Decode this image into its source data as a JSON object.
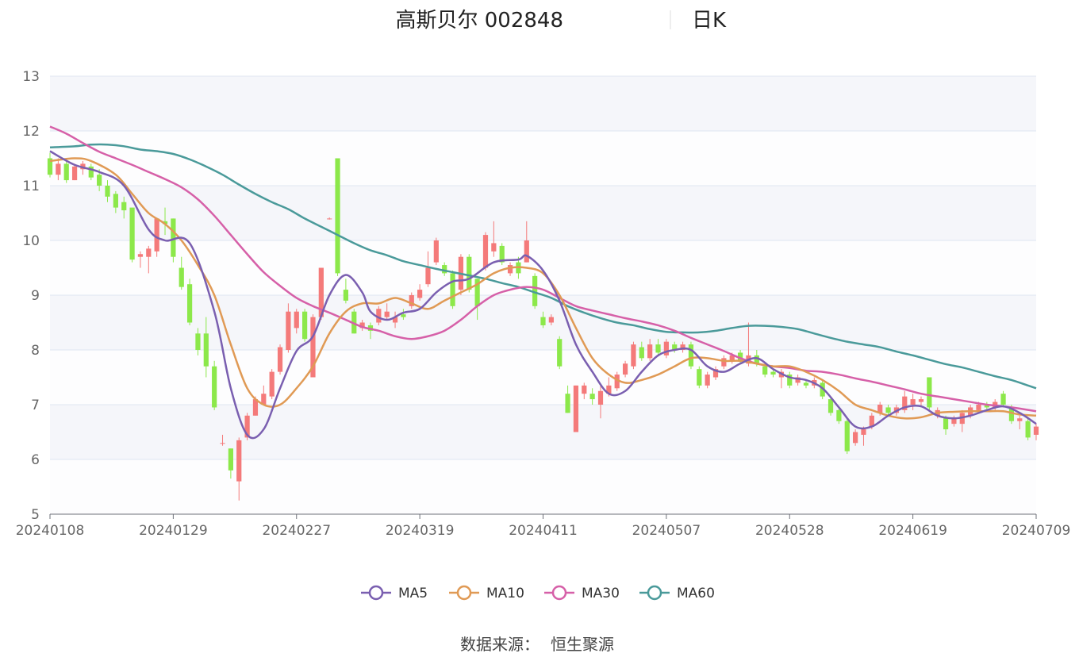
{
  "header": {
    "title": "高斯贝尔 002848",
    "subtitle": "日K"
  },
  "footer": {
    "source_label": "数据来源：",
    "source_name": "恒生聚源"
  },
  "colors": {
    "up": "#f47a7a",
    "down": "#8ce84a",
    "ma5": "#7a5fb0",
    "ma10": "#e09a55",
    "ma30": "#d660a8",
    "ma60": "#4a9a9a",
    "grid": "#e0e6f1",
    "band": "#f5f6fa"
  },
  "chart_data": {
    "type": "candlestick",
    "ylim": [
      5,
      13
    ],
    "yticks": [
      5,
      6,
      7,
      8,
      9,
      10,
      11,
      12,
      13
    ],
    "xticks": [
      "20240108",
      "20240129",
      "20240227",
      "20240319",
      "20240411",
      "20240507",
      "20240528",
      "20240619",
      "20240709"
    ],
    "xtick_index": [
      0,
      15,
      30,
      45,
      60,
      75,
      90,
      105,
      120
    ],
    "legend": [
      {
        "name": "MA5",
        "color": "#7a5fb0"
      },
      {
        "name": "MA10",
        "color": "#e09a55"
      },
      {
        "name": "MA30",
        "color": "#d660a8"
      },
      {
        "name": "MA60",
        "color": "#4a9a9a"
      }
    ],
    "candles": [
      [
        11.5,
        11.2,
        11.6,
        11.15
      ],
      [
        11.2,
        11.4,
        11.5,
        11.1
      ],
      [
        11.4,
        11.1,
        11.5,
        11.05
      ],
      [
        11.1,
        11.35,
        11.4,
        11.1
      ],
      [
        11.3,
        11.4,
        11.45,
        11.2
      ],
      [
        11.35,
        11.15,
        11.4,
        11.1
      ],
      [
        11.2,
        11.0,
        11.3,
        10.9
      ],
      [
        11.0,
        10.8,
        11.1,
        10.7
      ],
      [
        10.85,
        10.6,
        10.9,
        10.5
      ],
      [
        10.7,
        10.55,
        10.8,
        10.4
      ],
      [
        10.6,
        9.65,
        10.6,
        9.6
      ],
      [
        9.7,
        9.75,
        9.8,
        9.5
      ],
      [
        9.7,
        9.85,
        9.9,
        9.4
      ],
      [
        9.8,
        10.4,
        10.4,
        9.7
      ],
      [
        10.35,
        10.3,
        10.6,
        10.1
      ],
      [
        10.4,
        9.7,
        10.4,
        9.6
      ],
      [
        9.5,
        9.15,
        9.7,
        9.1
      ],
      [
        9.2,
        8.5,
        9.3,
        8.45
      ],
      [
        8.3,
        8.0,
        8.4,
        7.9
      ],
      [
        8.3,
        7.7,
        8.6,
        7.5
      ],
      [
        7.7,
        6.95,
        7.8,
        6.9
      ],
      [
        6.3,
        6.3,
        6.45,
        6.25
      ],
      [
        6.2,
        5.8,
        6.2,
        5.65
      ],
      [
        5.6,
        6.35,
        6.4,
        5.25
      ],
      [
        6.4,
        6.8,
        6.85,
        6.35
      ],
      [
        6.8,
        7.1,
        7.15,
        6.8
      ],
      [
        7.0,
        7.2,
        7.35,
        7.0
      ],
      [
        7.15,
        7.6,
        7.65,
        7.1
      ],
      [
        7.6,
        8.05,
        8.1,
        7.55
      ],
      [
        8.0,
        8.7,
        8.85,
        7.95
      ],
      [
        8.4,
        8.7,
        8.75,
        8.3
      ],
      [
        8.7,
        8.2,
        8.75,
        8.15
      ],
      [
        7.5,
        8.6,
        8.65,
        7.5
      ],
      [
        8.6,
        9.5,
        9.5,
        8.55
      ],
      [
        10.4,
        10.4,
        10.42,
        10.38
      ],
      [
        11.5,
        9.4,
        11.5,
        9.35
      ],
      [
        9.1,
        8.9,
        9.3,
        8.85
      ],
      [
        8.7,
        8.3,
        8.75,
        8.3
      ],
      [
        8.4,
        8.5,
        8.55,
        8.35
      ],
      [
        8.45,
        8.35,
        8.5,
        8.2
      ],
      [
        8.5,
        8.75,
        8.8,
        8.45
      ],
      [
        8.6,
        8.7,
        8.85,
        8.55
      ],
      [
        8.5,
        8.6,
        8.7,
        8.4
      ],
      [
        8.65,
        8.6,
        8.75,
        8.55
      ],
      [
        8.8,
        9.0,
        9.05,
        8.75
      ],
      [
        8.95,
        9.1,
        9.2,
        8.9
      ],
      [
        9.2,
        9.5,
        9.8,
        9.15
      ],
      [
        9.6,
        10.0,
        10.05,
        9.55
      ],
      [
        9.55,
        9.4,
        9.6,
        9.35
      ],
      [
        9.4,
        8.8,
        9.45,
        8.75
      ],
      [
        9.1,
        9.7,
        9.75,
        9.0
      ],
      [
        9.7,
        9.1,
        9.75,
        9.05
      ],
      [
        9.3,
        8.8,
        9.3,
        8.55
      ],
      [
        9.5,
        10.1,
        10.15,
        9.45
      ],
      [
        9.8,
        9.95,
        10.35,
        9.7
      ],
      [
        9.9,
        9.6,
        9.95,
        9.55
      ],
      [
        9.4,
        9.55,
        9.6,
        9.35
      ],
      [
        9.6,
        9.4,
        9.7,
        9.3
      ],
      [
        9.6,
        10.0,
        10.35,
        9.6
      ],
      [
        9.35,
        8.8,
        9.4,
        8.75
      ],
      [
        8.6,
        8.45,
        8.7,
        8.4
      ],
      [
        8.5,
        8.6,
        8.65,
        8.45
      ],
      [
        8.2,
        7.7,
        8.25,
        7.65
      ],
      [
        7.2,
        6.85,
        7.35,
        6.85
      ],
      [
        6.5,
        7.35,
        7.35,
        6.5
      ],
      [
        7.2,
        7.35,
        7.4,
        7.1
      ],
      [
        7.2,
        7.1,
        7.3,
        7.0
      ],
      [
        7.0,
        7.25,
        7.35,
        6.75
      ],
      [
        7.2,
        7.35,
        7.5,
        7.15
      ],
      [
        7.3,
        7.55,
        7.6,
        7.25
      ],
      [
        7.55,
        7.75,
        7.8,
        7.5
      ],
      [
        7.7,
        8.1,
        8.15,
        7.65
      ],
      [
        8.05,
        7.85,
        8.15,
        7.8
      ],
      [
        7.85,
        8.1,
        8.2,
        7.8
      ],
      [
        8.1,
        7.95,
        8.2,
        7.9
      ],
      [
        7.9,
        8.15,
        8.2,
        7.85
      ],
      [
        8.1,
        8.0,
        8.15,
        7.95
      ],
      [
        8.0,
        8.1,
        8.15,
        7.95
      ],
      [
        8.1,
        7.7,
        8.15,
        7.65
      ],
      [
        7.65,
        7.35,
        7.7,
        7.3
      ],
      [
        7.35,
        7.55,
        7.6,
        7.3
      ],
      [
        7.5,
        7.65,
        7.7,
        7.45
      ],
      [
        7.7,
        7.85,
        7.9,
        7.65
      ],
      [
        7.8,
        7.9,
        7.95,
        7.75
      ],
      [
        7.95,
        7.8,
        8.0,
        7.75
      ],
      [
        7.75,
        7.9,
        8.5,
        7.7
      ],
      [
        7.9,
        7.75,
        8.0,
        7.7
      ],
      [
        7.7,
        7.55,
        7.75,
        7.5
      ],
      [
        7.6,
        7.55,
        7.65,
        7.5
      ],
      [
        7.5,
        7.6,
        7.65,
        7.3
      ],
      [
        7.55,
        7.35,
        7.6,
        7.3
      ],
      [
        7.4,
        7.5,
        7.55,
        7.35
      ],
      [
        7.4,
        7.35,
        7.45,
        7.3
      ],
      [
        7.35,
        7.45,
        7.5,
        7.3
      ],
      [
        7.4,
        7.15,
        7.45,
        7.1
      ],
      [
        7.1,
        6.85,
        7.15,
        6.8
      ],
      [
        6.9,
        6.7,
        6.95,
        6.65
      ],
      [
        6.7,
        6.15,
        6.75,
        6.1
      ],
      [
        6.3,
        6.5,
        6.55,
        6.25
      ],
      [
        6.45,
        6.55,
        6.6,
        6.25
      ],
      [
        6.6,
        6.8,
        6.85,
        6.55
      ],
      [
        6.85,
        7.0,
        7.05,
        6.8
      ],
      [
        6.95,
        6.85,
        7.0,
        6.8
      ],
      [
        6.85,
        6.95,
        7.0,
        6.8
      ],
      [
        6.9,
        7.15,
        7.25,
        6.85
      ],
      [
        7.0,
        7.1,
        7.2,
        6.9
      ],
      [
        7.05,
        7.1,
        7.15,
        6.95
      ],
      [
        7.5,
        6.95,
        7.5,
        6.9
      ],
      [
        6.8,
        6.9,
        6.95,
        6.75
      ],
      [
        6.75,
        6.55,
        6.8,
        6.45
      ],
      [
        6.65,
        6.75,
        6.8,
        6.6
      ],
      [
        6.65,
        6.85,
        6.9,
        6.5
      ],
      [
        6.8,
        6.95,
        7.0,
        6.75
      ],
      [
        6.9,
        7.0,
        7.05,
        6.85
      ],
      [
        7.0,
        6.95,
        7.05,
        6.9
      ],
      [
        6.95,
        7.05,
        7.1,
        6.9
      ],
      [
        7.2,
        7.0,
        7.25,
        6.95
      ],
      [
        6.95,
        6.7,
        7.0,
        6.65
      ],
      [
        6.7,
        6.75,
        6.8,
        6.55
      ],
      [
        6.7,
        6.4,
        6.75,
        6.35
      ],
      [
        6.45,
        6.6,
        6.65,
        6.35
      ]
    ],
    "ma5": [
      [
        0,
        11.63
      ],
      [
        3,
        11.38
      ],
      [
        6,
        11.25
      ],
      [
        9,
        11.0
      ],
      [
        12,
        10.2
      ],
      [
        14,
        10.0
      ],
      [
        17,
        9.95
      ],
      [
        20,
        8.7
      ],
      [
        22,
        7.3
      ],
      [
        24,
        6.45
      ],
      [
        26,
        6.55
      ],
      [
        28,
        7.3
      ],
      [
        30,
        7.98
      ],
      [
        32,
        8.25
      ],
      [
        34,
        9.0
      ],
      [
        36,
        9.37
      ],
      [
        38,
        9.05
      ],
      [
        39,
        8.7
      ],
      [
        41,
        8.55
      ],
      [
        43,
        8.68
      ],
      [
        45,
        8.75
      ],
      [
        47,
        9.05
      ],
      [
        49,
        9.25
      ],
      [
        51,
        9.3
      ],
      [
        54,
        9.6
      ],
      [
        57,
        9.65
      ],
      [
        58,
        9.72
      ],
      [
        60,
        9.45
      ],
      [
        62,
        8.9
      ],
      [
        64,
        8.1
      ],
      [
        66,
        7.6
      ],
      [
        68,
        7.2
      ],
      [
        70,
        7.25
      ],
      [
        72,
        7.6
      ],
      [
        74,
        7.9
      ],
      [
        76,
        8.0
      ],
      [
        78,
        8.0
      ],
      [
        80,
        7.7
      ],
      [
        82,
        7.6
      ],
      [
        84,
        7.75
      ],
      [
        86,
        7.85
      ],
      [
        88,
        7.65
      ],
      [
        90,
        7.5
      ],
      [
        92,
        7.45
      ],
      [
        94,
        7.3
      ],
      [
        96,
        6.95
      ],
      [
        98,
        6.6
      ],
      [
        100,
        6.6
      ],
      [
        102,
        6.8
      ],
      [
        104,
        6.95
      ],
      [
        106,
        6.97
      ],
      [
        108,
        6.8
      ],
      [
        110,
        6.75
      ],
      [
        112,
        6.8
      ],
      [
        114,
        6.9
      ],
      [
        116,
        6.97
      ],
      [
        118,
        6.85
      ],
      [
        120,
        6.65
      ]
    ],
    "ma10": [
      [
        0,
        11.45
      ],
      [
        3,
        11.5
      ],
      [
        5,
        11.45
      ],
      [
        8,
        11.2
      ],
      [
        10,
        10.85
      ],
      [
        12,
        10.5
      ],
      [
        14,
        10.3
      ],
      [
        16,
        10.0
      ],
      [
        18,
        9.55
      ],
      [
        20,
        9.0
      ],
      [
        22,
        8.1
      ],
      [
        24,
        7.3
      ],
      [
        26,
        7.0
      ],
      [
        28,
        7.0
      ],
      [
        30,
        7.3
      ],
      [
        32,
        7.7
      ],
      [
        34,
        8.3
      ],
      [
        36,
        8.7
      ],
      [
        38,
        8.85
      ],
      [
        40,
        8.85
      ],
      [
        42,
        8.95
      ],
      [
        44,
        8.85
      ],
      [
        46,
        8.75
      ],
      [
        48,
        8.9
      ],
      [
        50,
        9.05
      ],
      [
        52,
        9.2
      ],
      [
        54,
        9.4
      ],
      [
        56,
        9.5
      ],
      [
        58,
        9.5
      ],
      [
        60,
        9.4
      ],
      [
        62,
        9.0
      ],
      [
        64,
        8.4
      ],
      [
        66,
        7.85
      ],
      [
        68,
        7.55
      ],
      [
        70,
        7.4
      ],
      [
        72,
        7.45
      ],
      [
        74,
        7.55
      ],
      [
        76,
        7.7
      ],
      [
        78,
        7.85
      ],
      [
        80,
        7.85
      ],
      [
        82,
        7.8
      ],
      [
        84,
        7.8
      ],
      [
        86,
        7.75
      ],
      [
        88,
        7.7
      ],
      [
        90,
        7.7
      ],
      [
        92,
        7.6
      ],
      [
        94,
        7.45
      ],
      [
        96,
        7.25
      ],
      [
        98,
        7.0
      ],
      [
        100,
        6.9
      ],
      [
        102,
        6.8
      ],
      [
        104,
        6.75
      ],
      [
        106,
        6.77
      ],
      [
        108,
        6.85
      ],
      [
        110,
        6.87
      ],
      [
        112,
        6.88
      ],
      [
        114,
        6.88
      ],
      [
        116,
        6.88
      ],
      [
        118,
        6.82
      ],
      [
        120,
        6.8
      ]
    ],
    "ma30": [
      [
        0,
        12.08
      ],
      [
        2,
        11.95
      ],
      [
        4,
        11.78
      ],
      [
        6,
        11.62
      ],
      [
        8,
        11.5
      ],
      [
        10,
        11.38
      ],
      [
        12,
        11.25
      ],
      [
        14,
        11.12
      ],
      [
        16,
        10.97
      ],
      [
        18,
        10.75
      ],
      [
        20,
        10.45
      ],
      [
        22,
        10.1
      ],
      [
        24,
        9.75
      ],
      [
        26,
        9.42
      ],
      [
        28,
        9.17
      ],
      [
        30,
        8.95
      ],
      [
        32,
        8.8
      ],
      [
        34,
        8.68
      ],
      [
        36,
        8.55
      ],
      [
        38,
        8.42
      ],
      [
        40,
        8.35
      ],
      [
        42,
        8.25
      ],
      [
        44,
        8.2
      ],
      [
        46,
        8.25
      ],
      [
        48,
        8.35
      ],
      [
        50,
        8.55
      ],
      [
        52,
        8.8
      ],
      [
        54,
        9.0
      ],
      [
        56,
        9.1
      ],
      [
        58,
        9.15
      ],
      [
        60,
        9.1
      ],
      [
        62,
        8.95
      ],
      [
        64,
        8.8
      ],
      [
        66,
        8.72
      ],
      [
        68,
        8.65
      ],
      [
        70,
        8.58
      ],
      [
        72,
        8.52
      ],
      [
        74,
        8.45
      ],
      [
        76,
        8.35
      ],
      [
        78,
        8.22
      ],
      [
        80,
        8.1
      ],
      [
        82,
        7.98
      ],
      [
        84,
        7.85
      ],
      [
        86,
        7.75
      ],
      [
        88,
        7.7
      ],
      [
        90,
        7.67
      ],
      [
        92,
        7.62
      ],
      [
        94,
        7.6
      ],
      [
        96,
        7.55
      ],
      [
        98,
        7.48
      ],
      [
        100,
        7.42
      ],
      [
        102,
        7.35
      ],
      [
        104,
        7.28
      ],
      [
        106,
        7.2
      ],
      [
        108,
        7.15
      ],
      [
        110,
        7.1
      ],
      [
        112,
        7.05
      ],
      [
        114,
        7.0
      ],
      [
        116,
        6.97
      ],
      [
        118,
        6.93
      ],
      [
        120,
        6.88
      ]
    ],
    "ma60": [
      [
        0,
        11.7
      ],
      [
        3,
        11.72
      ],
      [
        5,
        11.75
      ],
      [
        7,
        11.75
      ],
      [
        9,
        11.72
      ],
      [
        11,
        11.66
      ],
      [
        13,
        11.63
      ],
      [
        15,
        11.58
      ],
      [
        17,
        11.48
      ],
      [
        19,
        11.35
      ],
      [
        21,
        11.2
      ],
      [
        23,
        11.02
      ],
      [
        25,
        10.85
      ],
      [
        27,
        10.7
      ],
      [
        29,
        10.57
      ],
      [
        31,
        10.4
      ],
      [
        33,
        10.25
      ],
      [
        35,
        10.1
      ],
      [
        37,
        9.95
      ],
      [
        39,
        9.82
      ],
      [
        41,
        9.73
      ],
      [
        43,
        9.62
      ],
      [
        45,
        9.55
      ],
      [
        47,
        9.48
      ],
      [
        49,
        9.42
      ],
      [
        51,
        9.36
      ],
      [
        53,
        9.3
      ],
      [
        55,
        9.22
      ],
      [
        57,
        9.15
      ],
      [
        59,
        9.05
      ],
      [
        61,
        8.95
      ],
      [
        63,
        8.8
      ],
      [
        65,
        8.68
      ],
      [
        67,
        8.58
      ],
      [
        69,
        8.5
      ],
      [
        71,
        8.45
      ],
      [
        73,
        8.38
      ],
      [
        75,
        8.33
      ],
      [
        77,
        8.32
      ],
      [
        79,
        8.32
      ],
      [
        81,
        8.35
      ],
      [
        83,
        8.4
      ],
      [
        85,
        8.44
      ],
      [
        87,
        8.44
      ],
      [
        89,
        8.42
      ],
      [
        91,
        8.38
      ],
      [
        93,
        8.3
      ],
      [
        95,
        8.22
      ],
      [
        97,
        8.15
      ],
      [
        99,
        8.1
      ],
      [
        101,
        8.05
      ],
      [
        103,
        7.97
      ],
      [
        105,
        7.9
      ],
      [
        107,
        7.82
      ],
      [
        109,
        7.74
      ],
      [
        111,
        7.68
      ],
      [
        113,
        7.6
      ],
      [
        115,
        7.52
      ],
      [
        117,
        7.45
      ],
      [
        119,
        7.35
      ],
      [
        120,
        7.3
      ]
    ]
  }
}
